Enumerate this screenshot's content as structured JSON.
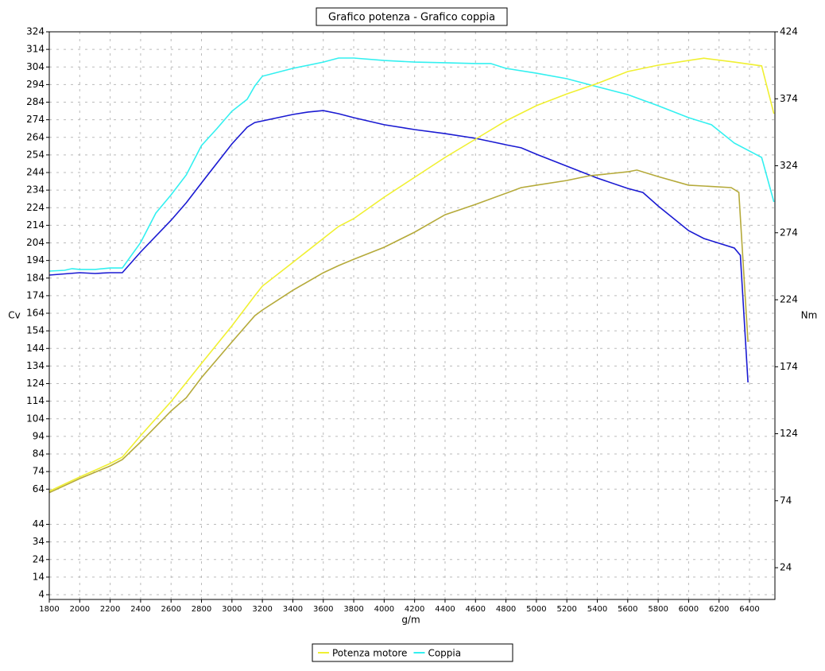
{
  "chart_data": {
    "type": "line",
    "title": "Grafico potenza - Grafico coppia",
    "xlabel": "g/m",
    "ylabel": "Cv",
    "y2label": "Nm",
    "xlim": [
      1800,
      6567
    ],
    "ylim": [
      1.3,
      324
    ],
    "y2lim": [
      0.3,
      424
    ],
    "xticks": [
      1800,
      2000,
      2200,
      2400,
      2600,
      2800,
      3000,
      3200,
      3400,
      3600,
      3800,
      4000,
      4200,
      4400,
      4600,
      4800,
      5000,
      5200,
      5400,
      5600,
      5800,
      6000,
      6200,
      6400
    ],
    "yticks": [
      4,
      14,
      24,
      34,
      44,
      64,
      74,
      84,
      94,
      104,
      114,
      124,
      134,
      144,
      154,
      164,
      174,
      184,
      194,
      204,
      214,
      224,
      234,
      244,
      254,
      264,
      274,
      284,
      294,
      304,
      314,
      324
    ],
    "y2ticks": [
      24,
      74,
      124,
      174,
      224,
      274,
      324,
      374,
      424
    ],
    "grid": true,
    "legend": "bottom",
    "series": [
      {
        "name": "Potenza motore",
        "color": "#f0f032",
        "axis": "y",
        "x": [
          1800,
          2000,
          2200,
          2280,
          2400,
          2600,
          2800,
          3000,
          3150,
          3200,
          3400,
          3600,
          3700,
          3800,
          4000,
          4200,
          4400,
          4600,
          4800,
          5000,
          5200,
          5400,
          5600,
          5800,
          6000,
          6100,
          6300,
          6480,
          6560
        ],
        "values": [
          62.8,
          70.9,
          78.6,
          82.2,
          94.4,
          113.8,
          135.5,
          156.8,
          174,
          179.4,
          192.9,
          206.5,
          213.3,
          217.8,
          230,
          241.3,
          252.6,
          263,
          273.4,
          282,
          288.7,
          294.6,
          301.4,
          305,
          307.7,
          309,
          306.8,
          304.6,
          277.4
        ]
      },
      {
        "name": "Coppia",
        "color": "#33f0f0",
        "axis": "y2",
        "x": [
          1800,
          1900,
          1950,
          2000,
          2100,
          2200,
          2280,
          2400,
          2500,
          2600,
          2700,
          2800,
          2900,
          3000,
          3100,
          3150,
          3200,
          3400,
          3600,
          3700,
          3800,
          4000,
          4200,
          4400,
          4600,
          4700,
          4800,
          5000,
          5200,
          5400,
          5600,
          5800,
          6000,
          6150,
          6300,
          6480,
          6560
        ],
        "values": [
          245.4,
          246,
          247.2,
          246.6,
          246.6,
          247.7,
          247.7,
          266.7,
          288.7,
          302.3,
          317.2,
          339.1,
          351.6,
          364.7,
          373.6,
          383.6,
          390.8,
          396.7,
          401.4,
          404.4,
          404.4,
          402.6,
          401.4,
          400.9,
          400.3,
          400.3,
          396.7,
          393.1,
          389,
          383,
          377.1,
          368.8,
          359.9,
          354.6,
          340.9,
          330.2,
          297
        ]
      },
      {
        "color": "#b5aa3a",
        "axis": "y",
        "x": [
          1800,
          2000,
          2200,
          2280,
          2400,
          2600,
          2700,
          2800,
          3000,
          3150,
          3200,
          3400,
          3600,
          3700,
          3800,
          4000,
          4200,
          4400,
          4600,
          4800,
          4900,
          5000,
          5200,
          5350,
          5400,
          5600,
          5660,
          5800,
          6000,
          6100,
          6280,
          6330,
          6390
        ],
        "values": [
          62,
          70,
          77.2,
          80.8,
          90.8,
          108.4,
          116,
          127.4,
          147.7,
          162.6,
          165.8,
          177,
          187,
          191.1,
          194.7,
          201.5,
          210.1,
          220,
          225.9,
          232.2,
          235.4,
          236.8,
          239.5,
          242.2,
          242.6,
          244.4,
          245.4,
          241.7,
          236.8,
          236.3,
          235.4,
          232.7,
          147.7
        ]
      },
      {
        "color": "#1a1ad2",
        "axis": "y2",
        "x": [
          1800,
          2000,
          2100,
          2200,
          2280,
          2400,
          2600,
          2700,
          2800,
          3000,
          3100,
          3150,
          3200,
          3400,
          3500,
          3600,
          3700,
          3800,
          4000,
          4200,
          4400,
          4600,
          4700,
          4800,
          4900,
          5000,
          5200,
          5400,
          5600,
          5700,
          5800,
          6000,
          6100,
          6300,
          6340,
          6390
        ],
        "values": [
          242.4,
          244.2,
          243.6,
          244.2,
          244.2,
          259.6,
          283.3,
          296.4,
          311.2,
          340.3,
          352.8,
          356.3,
          357.5,
          362.3,
          364.1,
          365.2,
          362.9,
          359.9,
          354.6,
          351,
          348,
          344.5,
          342.1,
          339.7,
          337.4,
          332.6,
          323.7,
          314.8,
          307.1,
          304.1,
          294,
          275.6,
          269.7,
          262.6,
          257.2,
          162.3
        ]
      }
    ]
  }
}
